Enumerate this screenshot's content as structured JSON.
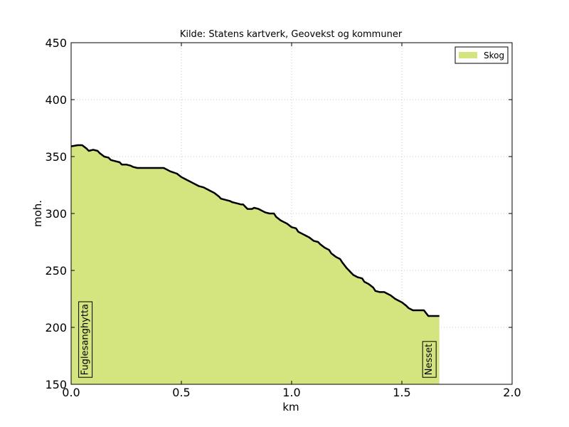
{
  "chart_data": {
    "type": "area",
    "title": "Kilde: Statens kartverk, Geovekst og kommuner",
    "xlabel": "km",
    "ylabel": "moh.",
    "xlim": [
      0.0,
      2.0
    ],
    "ylim": [
      150,
      450
    ],
    "x_ticks": [
      "0.0",
      "0.5",
      "1.0",
      "1.5",
      "2.0"
    ],
    "y_ticks": [
      "150",
      "200",
      "250",
      "300",
      "350",
      "400",
      "450"
    ],
    "grid": true,
    "legend_position": "top-right",
    "colors": {
      "fill": "#d4e57f",
      "line": "#000000"
    },
    "series": [
      {
        "name": "Skog",
        "x": [
          0.0,
          0.03,
          0.05,
          0.07,
          0.08,
          0.1,
          0.12,
          0.13,
          0.15,
          0.17,
          0.18,
          0.2,
          0.22,
          0.23,
          0.25,
          0.27,
          0.28,
          0.3,
          0.32,
          0.35,
          0.38,
          0.42,
          0.45,
          0.48,
          0.5,
          0.52,
          0.55,
          0.57,
          0.58,
          0.6,
          0.62,
          0.63,
          0.65,
          0.67,
          0.68,
          0.7,
          0.72,
          0.73,
          0.75,
          0.77,
          0.78,
          0.8,
          0.82,
          0.83,
          0.85,
          0.87,
          0.88,
          0.9,
          0.92,
          0.93,
          0.95,
          0.97,
          0.98,
          1.0,
          1.02,
          1.03,
          1.05,
          1.07,
          1.08,
          1.1,
          1.12,
          1.13,
          1.15,
          1.17,
          1.18,
          1.2,
          1.22,
          1.23,
          1.25,
          1.27,
          1.28,
          1.3,
          1.32,
          1.33,
          1.35,
          1.37,
          1.38,
          1.4,
          1.42,
          1.43,
          1.45,
          1.47,
          1.48,
          1.5,
          1.52,
          1.53,
          1.55,
          1.57,
          1.58,
          1.6,
          1.62,
          1.67
        ],
        "y": [
          359,
          360,
          360,
          357,
          355,
          356,
          355,
          353,
          350,
          349,
          347,
          346,
          345,
          343,
          343,
          342,
          341,
          340,
          340,
          340,
          340,
          340,
          337,
          335,
          332,
          330,
          327,
          325,
          324,
          323,
          321,
          320,
          318,
          315,
          313,
          312,
          311,
          310,
          309,
          308,
          308,
          304,
          304,
          305,
          304,
          302,
          301,
          300,
          300,
          297,
          294,
          292,
          291,
          288,
          287,
          284,
          282,
          280,
          279,
          276,
          275,
          273,
          270,
          268,
          265,
          262,
          260,
          257,
          252,
          248,
          246,
          244,
          243,
          240,
          238,
          235,
          232,
          231,
          231,
          230,
          228,
          225,
          224,
          222,
          219,
          217,
          215,
          215,
          215,
          215,
          210,
          210
        ]
      }
    ],
    "annotations": [
      {
        "text": "Fuglesanghytta",
        "x": 0.06,
        "y": 158
      },
      {
        "text": "Nesset",
        "x": 1.62,
        "y": 158
      }
    ]
  }
}
